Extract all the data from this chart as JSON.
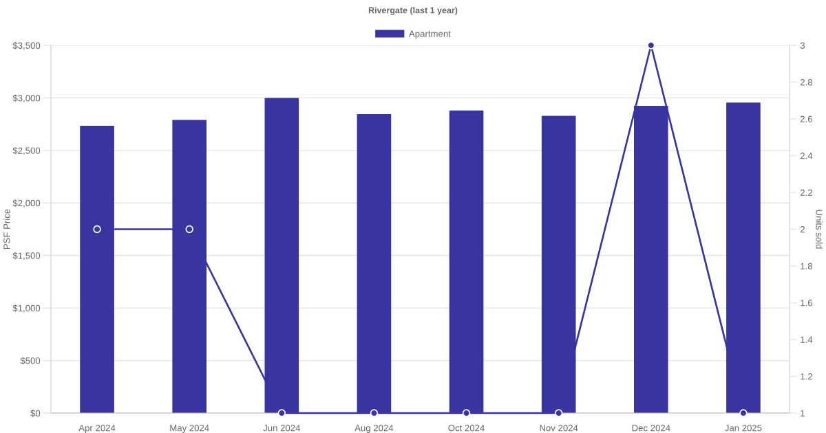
{
  "chart_data": {
    "type": "bar",
    "title": "Rivergate (last 1 year)",
    "ylabel": "PSF Price",
    "y2label": "Units sold",
    "categories": [
      "Apr 2024",
      "May 2024",
      "Jun 2024",
      "Aug 2024",
      "Oct 2024",
      "Nov 2024",
      "Dec 2024",
      "Jan 2025"
    ],
    "series": [
      {
        "name": "Apartment",
        "color": "#3834a0",
        "values": [
          2735,
          2790,
          3000,
          2845,
          2880,
          2830,
          2925,
          2955
        ]
      },
      {
        "type": "line",
        "axis": "y2",
        "color": "#3834a0",
        "values": [
          2,
          2,
          1,
          1,
          1,
          1,
          3,
          1
        ]
      }
    ],
    "ylim": [
      0,
      3500
    ],
    "yticks": [
      {
        "value": 0,
        "label": "$0"
      },
      {
        "value": 500,
        "label": "$500"
      },
      {
        "value": 1000,
        "label": "$1,000"
      },
      {
        "value": 1500,
        "label": "$1,500"
      },
      {
        "value": 2000,
        "label": "$2,000"
      },
      {
        "value": 2500,
        "label": "$2,500"
      },
      {
        "value": 3000,
        "label": "$3,000"
      },
      {
        "value": 3500,
        "label": "$3,500"
      }
    ],
    "y2lim": [
      1,
      3
    ],
    "y2ticks": [
      1,
      1.2,
      1.4,
      1.6,
      1.8,
      2,
      2.2,
      2.4,
      2.6,
      2.8,
      3
    ],
    "grid": "y",
    "legend": "top",
    "marker": "circle"
  }
}
